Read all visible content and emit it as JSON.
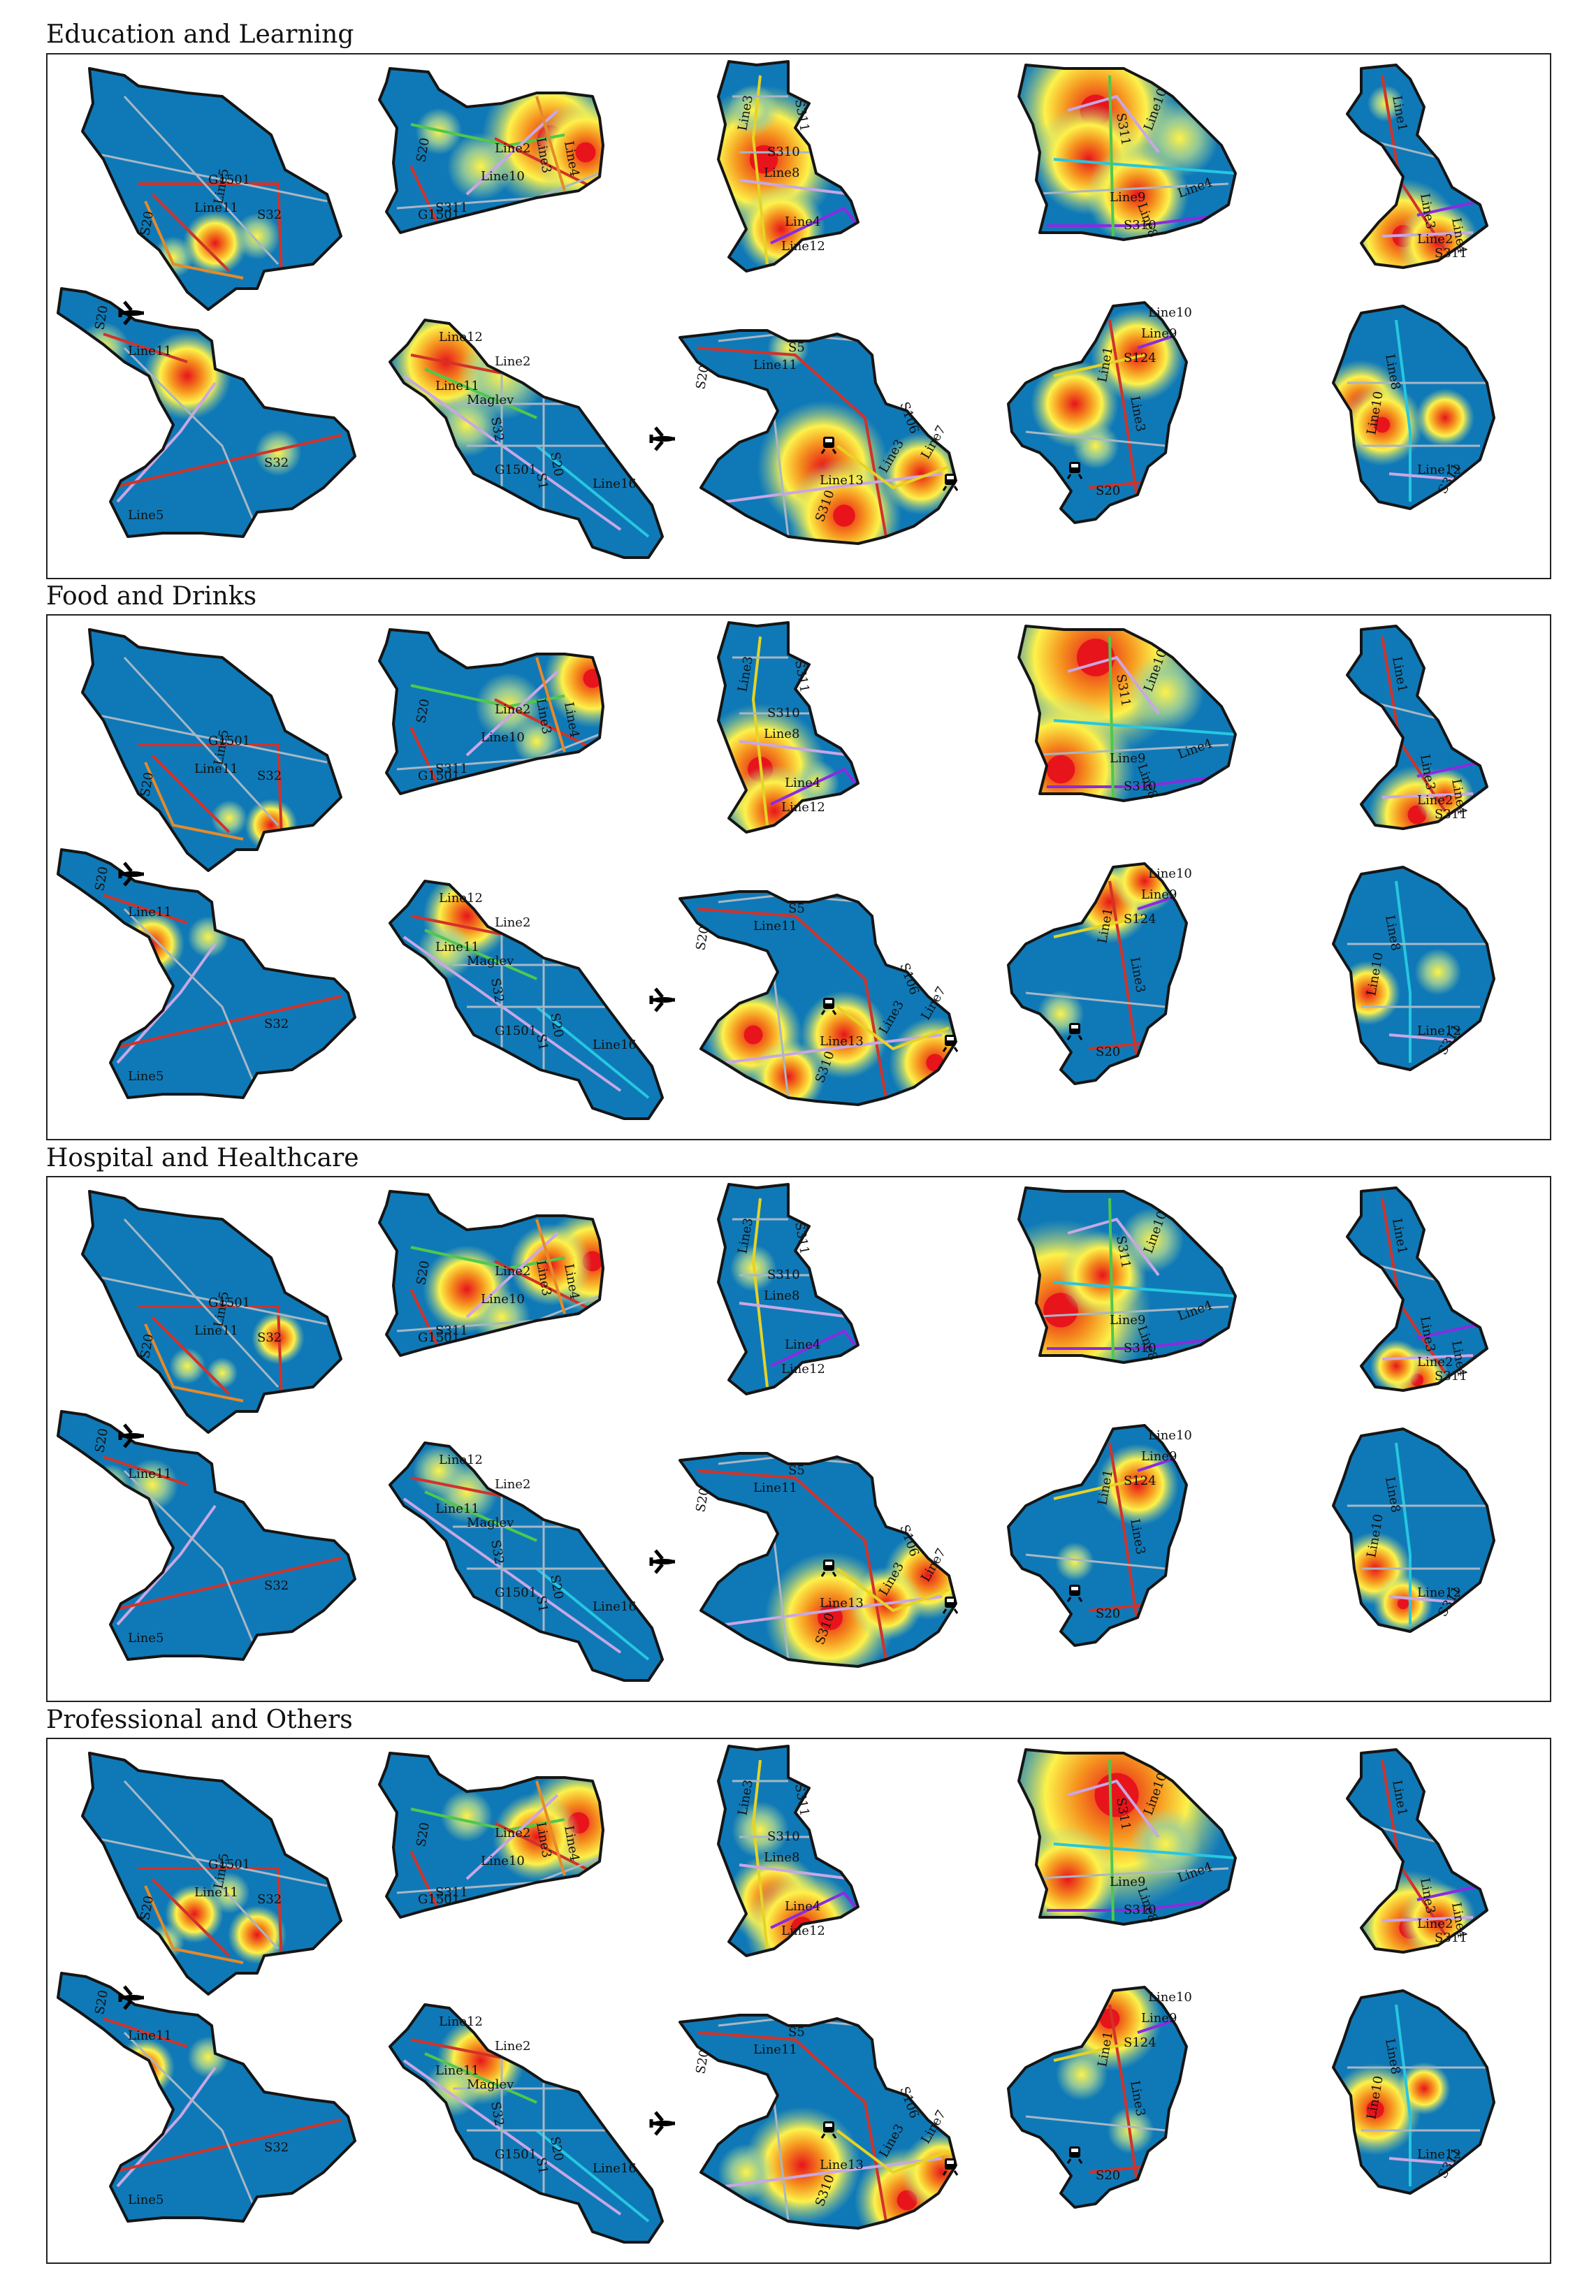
{
  "sections": [
    {
      "title": "Education and Learning"
    },
    {
      "title": "Food and Drinks"
    },
    {
      "title": "Hospital and Healthcare"
    },
    {
      "title": "Professional and Others"
    }
  ],
  "map_labels": {
    "d1": [
      "G1501",
      "S20",
      "Line11",
      "Line5",
      "S32"
    ],
    "d2": [
      "Line2",
      "Line10",
      "Line3",
      "Line4",
      "S20",
      "S311",
      "G1501"
    ],
    "d3": [
      "Line3",
      "S310",
      "Line8",
      "Line4",
      "Line12",
      "S311"
    ],
    "d4": [
      "S311",
      "Line10",
      "Line9",
      "Line8",
      "Line4",
      "S310"
    ],
    "d5": [
      "Line1",
      "Line2",
      "Line3",
      "Line4",
      "S311"
    ],
    "d6": [
      "Line11",
      "S20",
      "S32",
      "Line5"
    ],
    "d7": [
      "Line12",
      "Line11",
      "Maglev",
      "Line2",
      "Line16",
      "S32",
      "S20",
      "S1",
      "G1501"
    ],
    "d8": [
      "S5",
      "Line11",
      "S20",
      "S106",
      "Line13",
      "Line3",
      "Line7",
      "S310"
    ],
    "d9": [
      "Line10",
      "Line9",
      "Line1",
      "Line3",
      "S124",
      "S20"
    ],
    "d10": [
      "Line8",
      "Line10",
      "Line12",
      "S311"
    ]
  },
  "icons": {
    "airport": "airplane-icon",
    "station": "train-station-icon"
  },
  "colors": {
    "base_blue": "#0f79b7",
    "hot_red": "#e8141b",
    "warm_orange": "#f5911e",
    "yellow": "#fdf24a",
    "pale_green": "#9fcf96",
    "line_red": "#d1322a",
    "line_purple": "#8a2be2",
    "line_lavender": "#c9a7e5",
    "line_green": "#4fc84d",
    "line_cyan": "#26c7e0",
    "line_yellow": "#e6d325",
    "line_orange": "#e58a2a",
    "road_grey": "#a8b7c4",
    "outline": "#151515"
  }
}
